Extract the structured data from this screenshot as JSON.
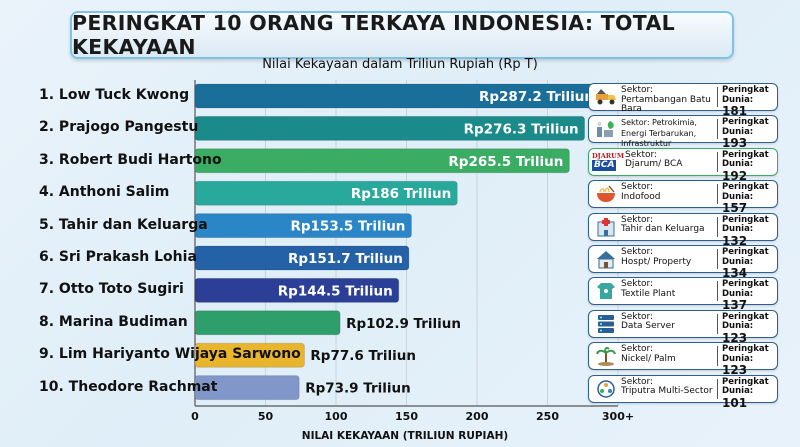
{
  "title": "PERINGKAT 10 ORANG TERKAYA INDONESIA: TOTAL KEKAYAAN",
  "subtitle": "Nilai Kekayaan dalam Triliun Rupiah (Rp T)",
  "chart_data": {
    "type": "bar",
    "orientation": "horizontal",
    "title": "PERINGKAT 10 ORANG TERKAYA INDONESIA: TOTAL KEKAYAAN",
    "subtitle": "Nilai Kekayaan dalam Triliun Rupiah (Rp T)",
    "xlabel": "NILAI KEKAYAAN (TRILIUN RUPIAH)",
    "xlim": [
      0,
      300
    ],
    "xticks": [
      "0",
      "50",
      "100",
      "150",
      "200",
      "250",
      "300+"
    ],
    "grid": true,
    "categories": [
      "1. Low Tuck Kwong",
      "2. Prajogo Pangestu",
      "3. Robert Budi Hartono",
      "4. Anthoni Salim",
      "5. Tahir dan Keluarga",
      "6. Sri Prakash Lohia",
      "7. Otto Toto Sugiri",
      "8. Marina Budiman",
      "9. Lim Hariyanto Wijaya Sarwono",
      "10. Theodore Rachmat"
    ],
    "values": [
      287.2,
      276.3,
      265.5,
      186,
      153.5,
      151.7,
      144.5,
      102.9,
      77.6,
      73.9
    ],
    "value_labels": [
      "Rp287.2 Triliun",
      "Rp276.3 Triliun",
      "Rp265.5 Triliun",
      "Rp186 Triliun",
      "Rp153.5 Triliun",
      "Rp151.7 Triliun",
      "Rp144.5 Triliun",
      "Rp102.9 Triliun",
      "Rp77.6 Triliun",
      "Rp73.9 Triliun"
    ],
    "colors": [
      "#1a6f9a",
      "#1a8b8a",
      "#3aac63",
      "#29a99c",
      "#2a86c6",
      "#2461a6",
      "#2a3f95",
      "#2e9e6a",
      "#e8b52c",
      "#8196c9"
    ]
  },
  "cards": [
    {
      "icon": "mining-truck-icon",
      "sector_label": "Sektor:",
      "sector": "Pertambangan Batu Bara",
      "rank_label": "Peringkat Dunia:",
      "rank": "181"
    },
    {
      "icon": "energy-plant-icon",
      "sector_label": "Sektor: Petrokimia, Energi Terbarukan, Infrastruktur",
      "sector": "",
      "rank_label": "Peringkat Dunia:",
      "rank": "193"
    },
    {
      "icon": "djarum-bca-logo",
      "sector_label": "Sektor:",
      "sector": "Djarum/ BCA",
      "rank_label": "Peringkat Dunia:",
      "rank": "192",
      "logo_top": "DJARUM",
      "logo_bottom": "BCA"
    },
    {
      "icon": "noodle-bowl-icon",
      "sector_label": "Sektor:",
      "sector": "Indofood",
      "rank_label": "Peringkat Dunia:",
      "rank": "157"
    },
    {
      "icon": "hospital-icon",
      "sector_label": "Sektor:",
      "sector": "Tahir dan Keluarga",
      "rank_label": "Peringkat Dunia:",
      "rank": "132"
    },
    {
      "icon": "house-icon",
      "sector_label": "Sektor:",
      "sector": "Hospt/ Property",
      "rank_label": "Peringkat Dunia:",
      "rank": "134"
    },
    {
      "icon": "textile-icon",
      "sector_label": "Sektor:",
      "sector": "Textile Plant",
      "rank_label": "Peringkat Dunia:",
      "rank": "137"
    },
    {
      "icon": "server-icon",
      "sector_label": "Sektor:",
      "sector": "Data Server",
      "rank_label": "Peringkat Dunia:",
      "rank": "123"
    },
    {
      "icon": "palm-icon",
      "sector_label": "Sektor:",
      "sector": "Nickel/ Palm",
      "rank_label": "Peringkat Dunia:",
      "rank": "123"
    },
    {
      "icon": "multi-sector-icon",
      "sector_label": "Sektor:",
      "sector": "Triputra Multi-Sector",
      "rank_label": "Peringkat Dunia:",
      "rank": "101"
    }
  ]
}
